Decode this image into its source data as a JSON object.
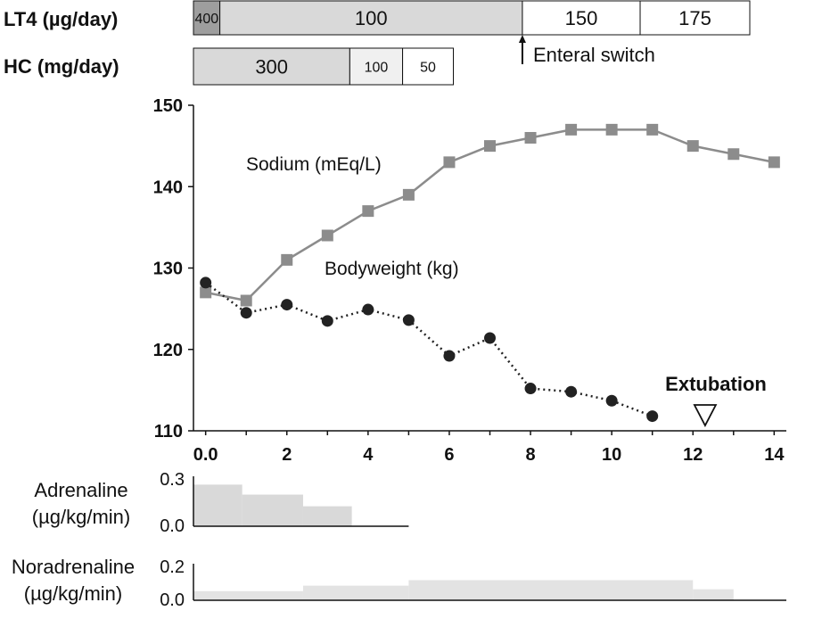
{
  "chart_data": [
    {
      "type": "line",
      "x": [
        0,
        1,
        2,
        3,
        4,
        5,
        6,
        7,
        8,
        9,
        10,
        11,
        12,
        13,
        14
      ],
      "xlim": [
        -0.3,
        14.3
      ],
      "ylim": [
        110,
        150
      ],
      "x_ticks": [
        "0.0",
        "2",
        "4",
        "6",
        "8",
        "10",
        "12",
        "14"
      ],
      "y_ticks": [
        "110",
        "120",
        "130",
        "140",
        "150"
      ],
      "grid": false,
      "series": [
        {
          "name": "Sodium (mEq/L)",
          "marker": "square",
          "line": "solid",
          "color": "#8c8c8c",
          "x": [
            0,
            1,
            2,
            3,
            4,
            5,
            6,
            7,
            8,
            9,
            10,
            11,
            12,
            13,
            14
          ],
          "y": [
            127,
            126,
            131,
            134,
            137,
            139,
            143,
            145,
            146,
            147,
            147,
            147,
            145,
            144,
            143
          ]
        },
        {
          "name": "Bodyweight (kg)",
          "marker": "circle",
          "line": "dotted",
          "color": "#222222",
          "x": [
            0,
            1,
            2,
            3,
            4,
            5,
            6,
            7,
            8,
            9,
            10,
            11
          ],
          "y": [
            128.2,
            124.5,
            125.5,
            123.5,
            124.9,
            123.6,
            119.2,
            121.4,
            115.2,
            114.8,
            113.7,
            111.8
          ]
        }
      ],
      "annotations": [
        {
          "text": "Extubation",
          "x": 12.3,
          "marker": "open-triangle-down"
        }
      ]
    },
    {
      "type": "bar",
      "name": "LT4 (µg/day)",
      "segments": [
        {
          "label": "400",
          "start": -0.3,
          "end": 0.35,
          "color": "#9e9e9e"
        },
        {
          "label": "100",
          "start": 0.35,
          "end": 7.8,
          "color": "#d9d9d9"
        },
        {
          "label": "150",
          "start": 7.8,
          "end": 10.7,
          "color": "#ffffff"
        },
        {
          "label": "175",
          "start": 10.7,
          "end": 13.4,
          "color": "#ffffff"
        }
      ],
      "annotations": [
        {
          "text": "Enteral switch",
          "x": 7.8
        }
      ]
    },
    {
      "type": "bar",
      "name": "HC (mg/day)",
      "segments": [
        {
          "label": "300",
          "start": -0.3,
          "end": 3.55,
          "color": "#d9d9d9"
        },
        {
          "label": "100",
          "start": 3.55,
          "end": 4.85,
          "color": "#f0f0f0"
        },
        {
          "label": "50",
          "start": 4.85,
          "end": 6.1,
          "color": "#ffffff"
        }
      ]
    },
    {
      "type": "area",
      "name": "Adrenaline",
      "ylabel": [
        "Adrenaline",
        "(µg/kg/min)"
      ],
      "y_ticks": [
        "0.3",
        "0.0"
      ],
      "ylim": [
        0,
        0.3
      ],
      "xlim": [
        -0.3,
        5.0
      ],
      "steps": [
        {
          "start": -0.3,
          "end": 0.9,
          "value": 0.25
        },
        {
          "start": 0.9,
          "end": 2.4,
          "value": 0.19
        },
        {
          "start": 2.4,
          "end": 3.6,
          "value": 0.12
        }
      ],
      "color": "#d9d9d9"
    },
    {
      "type": "area",
      "name": "Noradrenaline",
      "ylabel": [
        "Noradrenaline",
        "(µg/kg/min)"
      ],
      "y_ticks": [
        "0.2",
        "0.0"
      ],
      "ylim": [
        0,
        0.2
      ],
      "xlim": [
        -0.3,
        14.3
      ],
      "steps": [
        {
          "start": -0.3,
          "end": 2.4,
          "value": 0.05
        },
        {
          "start": 2.4,
          "end": 5.0,
          "value": 0.08
        },
        {
          "start": 5.0,
          "end": 12.0,
          "value": 0.11
        },
        {
          "start": 12.0,
          "end": 13.0,
          "value": 0.06
        }
      ],
      "color": "#e3e3e3"
    }
  ]
}
